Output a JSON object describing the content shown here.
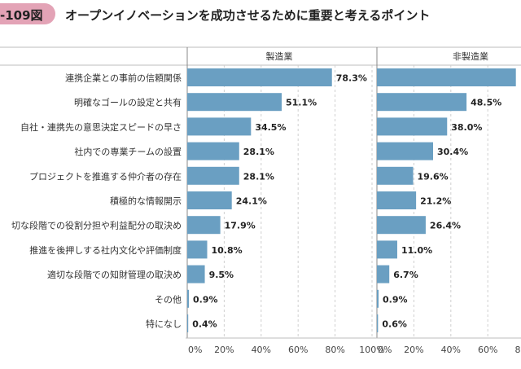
{
  "figure": {
    "number": "-109図",
    "title": "オープンイノベーションを成功させるために重要と考えるポイント",
    "badge_color": "#e3a3b6"
  },
  "chart_data": {
    "type": "bar",
    "orientation": "horizontal",
    "bar_color": "#6a9fc2",
    "categories": [
      "連携企業との事前の信頼関係",
      "明確なゴールの設定と共有",
      "自社・連携先の意思決定スピードの早さ",
      "社内での専業チームの設置",
      "プロジェクトを推進する仲介者の存在",
      "積極的な情報開示",
      "切な段階での役割分担や利益配分の取決め",
      "推進を後押しする社内文化や評価制度",
      "適切な段階での知財管理の取決め",
      "その他",
      "特になし"
    ],
    "panels": [
      {
        "name": "製造業",
        "values": [
          78.3,
          51.1,
          34.5,
          28.1,
          28.1,
          24.1,
          17.9,
          10.8,
          9.5,
          0.9,
          0.4
        ],
        "value_labels": [
          "78.3%",
          "51.1%",
          "34.5%",
          "28.1%",
          "28.1%",
          "24.1%",
          "17.9%",
          "10.8%",
          "9.5%",
          "0.9%",
          "0.4%"
        ],
        "xlim": [
          0,
          100
        ],
        "ticks": [
          "0%",
          "20%",
          "40%",
          "60%",
          "80%",
          "100%"
        ]
      },
      {
        "name": "非製造業",
        "values": [
          75.2,
          48.5,
          38.0,
          30.4,
          19.6,
          21.2,
          26.4,
          11.0,
          6.7,
          0.9,
          0.6
        ],
        "value_labels": [
          "",
          "48.5%",
          "38.0%",
          "30.4%",
          "19.6%",
          "21.2%",
          "26.4%",
          "11.0%",
          "6.7%",
          "0.9%",
          "0.6%"
        ],
        "xlim": [
          0,
          100
        ],
        "ticks": [
          "0%",
          "20%",
          "40%",
          "60%",
          "8"
        ]
      }
    ]
  }
}
